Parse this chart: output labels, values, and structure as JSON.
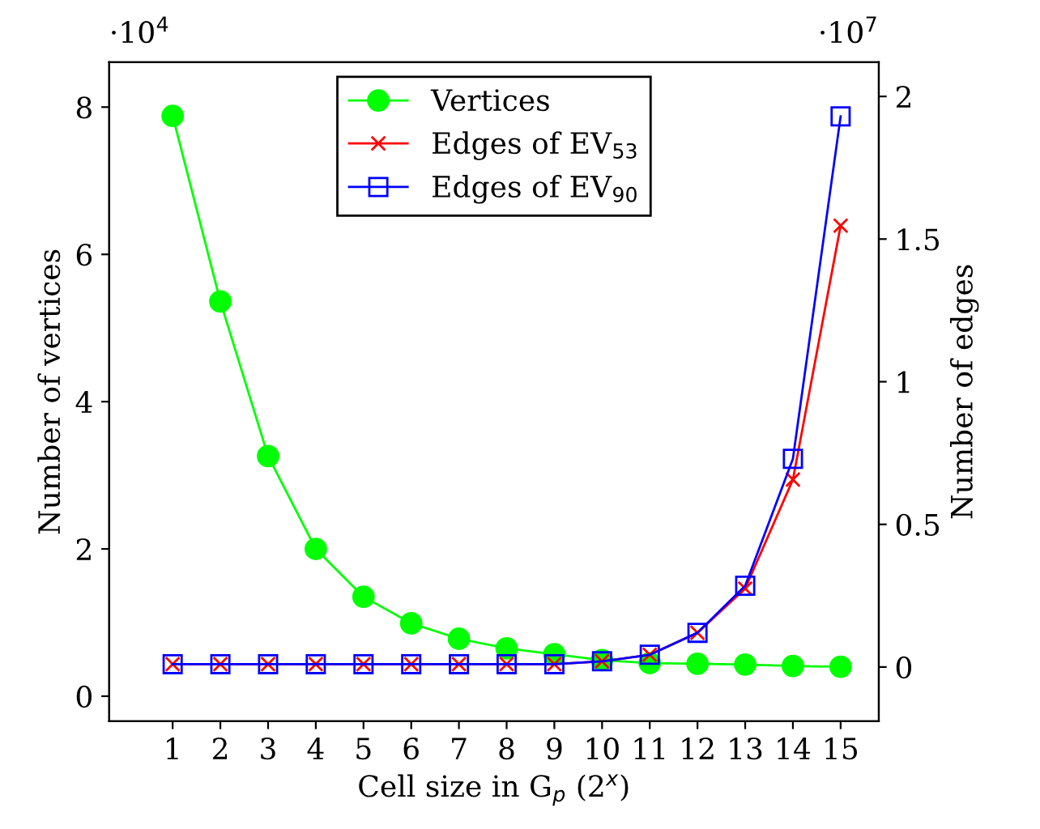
{
  "chart_data": {
    "type": "line",
    "xlabel": "Cell size in G$_{p}$ (2$^{x}$)",
    "ylabel": "Number of vertices",
    "y2label": "Number of edges",
    "annotations": [
      "·10$^{4}$",
      "·10$^{7}$"
    ],
    "x": [
      1,
      2,
      3,
      4,
      5,
      6,
      7,
      8,
      9,
      10,
      11,
      12,
      13,
      14,
      15
    ],
    "xlim": [
      -0.33,
      15.8
    ],
    "xticks": [
      1,
      2,
      3,
      4,
      5,
      6,
      7,
      8,
      9,
      10,
      11,
      12,
      13,
      14,
      15
    ],
    "ylim": [
      -0.34,
      8.61
    ],
    "yticks": [
      0,
      2,
      4,
      6,
      8
    ],
    "y2lim": [
      -0.19,
      2.12
    ],
    "y2ticks": [
      0,
      0.5,
      1,
      1.5,
      2
    ],
    "legend": "top",
    "grid": false,
    "series": [
      {
        "name": "Vertices",
        "color": "#00ff00",
        "marker": "circle",
        "values": [
          7.88,
          5.36,
          3.26,
          2.0,
          1.35,
          0.99,
          0.78,
          0.65,
          0.57,
          0.49,
          0.45,
          0.44,
          0.43,
          0.41,
          0.4
        ]
      },
      {
        "name": "Edges of EV$_{53}$",
        "color": "#ff0000",
        "marker": "cross",
        "axis": "y2",
        "values": [
          0.01,
          0.01,
          0.01,
          0.01,
          0.01,
          0.01,
          0.01,
          0.01,
          0.01,
          0.02,
          0.043,
          0.12,
          0.275,
          0.657,
          1.547
        ]
      },
      {
        "name": "Edges of EV$_{90}$",
        "color": "#0000ff",
        "marker": "square",
        "axis": "y2",
        "values": [
          0.01,
          0.01,
          0.01,
          0.01,
          0.01,
          0.01,
          0.01,
          0.01,
          0.01,
          0.02,
          0.043,
          0.12,
          0.285,
          0.73,
          1.93
        ]
      }
    ]
  }
}
